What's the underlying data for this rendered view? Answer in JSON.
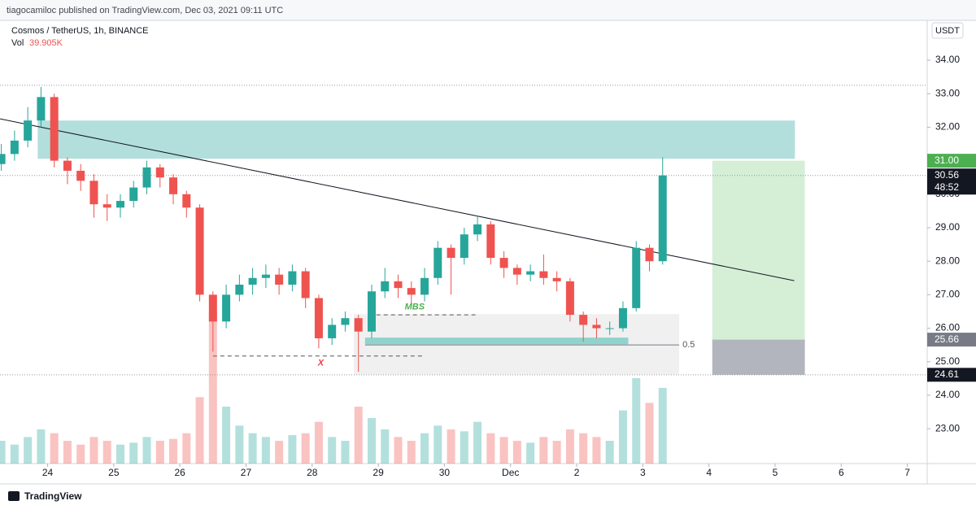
{
  "header": {
    "text": "tiagocamiloc published on TradingView.com, Dec 03, 2021 09:11 UTC"
  },
  "footer": {
    "text": "TradingView"
  },
  "chart_data": {
    "type": "candlestick",
    "title": "Cosmos / TetherUS, 1h, BINANCE",
    "currency": "USDT",
    "volume_name": "Vol",
    "volume_value_label": "39.905K",
    "up_color": "#26a69a",
    "down_color": "#ef5350",
    "x": [
      -0.7,
      -0.5,
      -0.3,
      -0.1,
      0.1,
      0.3,
      0.5,
      0.7,
      0.9,
      1.1,
      1.3,
      1.5,
      1.7,
      1.9,
      2.1,
      2.3,
      2.5,
      2.7,
      2.9,
      3.1,
      3.3,
      3.5,
      3.7,
      3.9,
      4.1,
      4.3,
      4.5,
      4.7,
      4.9,
      5.1,
      5.3,
      5.5,
      5.7,
      5.9,
      6.1,
      6.3,
      6.5,
      6.7,
      6.9,
      7.1,
      7.3,
      7.5,
      7.7,
      7.9,
      8.1,
      8.3,
      8.5,
      8.7,
      8.9,
      9.1,
      9.3
    ],
    "open": [
      30.9,
      31.2,
      31.6,
      32.2,
      32.9,
      31.0,
      30.7,
      30.4,
      29.7,
      29.6,
      29.8,
      30.2,
      30.8,
      30.5,
      30.0,
      29.6,
      27.0,
      26.2,
      27.0,
      27.3,
      27.5,
      27.6,
      27.3,
      27.7,
      26.9,
      25.7,
      26.1,
      26.3,
      25.9,
      27.1,
      27.4,
      27.2,
      27.0,
      27.5,
      28.4,
      28.1,
      28.8,
      29.1,
      28.1,
      27.8,
      27.6,
      27.7,
      27.5,
      27.4,
      26.4,
      26.1,
      26.0,
      26.0,
      26.6,
      28.4,
      28.0
    ],
    "high": [
      31.5,
      31.9,
      32.6,
      33.2,
      33.0,
      31.1,
      30.9,
      30.6,
      30.0,
      30.0,
      30.4,
      31.0,
      30.9,
      30.6,
      30.1,
      29.7,
      27.1,
      27.3,
      27.6,
      27.8,
      27.9,
      27.8,
      27.9,
      27.8,
      27.0,
      26.3,
      26.5,
      26.4,
      27.3,
      27.8,
      27.6,
      27.4,
      27.8,
      28.6,
      28.5,
      29.0,
      29.35,
      29.2,
      28.3,
      27.9,
      27.9,
      28.2,
      27.7,
      27.5,
      26.5,
      26.3,
      26.2,
      26.8,
      28.6,
      28.5,
      31.1
    ],
    "low": [
      30.7,
      31.0,
      31.4,
      32.0,
      30.8,
      30.3,
      30.1,
      29.3,
      29.2,
      29.3,
      29.6,
      30.0,
      30.2,
      29.7,
      29.3,
      26.8,
      25.3,
      26.0,
      26.8,
      27.0,
      27.2,
      27.0,
      27.1,
      26.6,
      25.4,
      25.5,
      25.9,
      24.7,
      25.7,
      26.9,
      26.9,
      26.7,
      26.8,
      27.3,
      27.0,
      27.9,
      28.6,
      27.9,
      27.5,
      27.3,
      27.4,
      27.3,
      27.1,
      26.2,
      25.6,
      25.7,
      25.8,
      25.9,
      26.5,
      27.7,
      27.9
    ],
    "close": [
      31.2,
      31.6,
      32.2,
      32.9,
      31.0,
      30.7,
      30.4,
      29.7,
      29.6,
      29.8,
      30.2,
      30.8,
      30.5,
      30.0,
      29.6,
      27.0,
      26.2,
      27.0,
      27.3,
      27.5,
      27.6,
      27.3,
      27.7,
      26.9,
      25.7,
      26.1,
      26.3,
      25.9,
      27.1,
      27.4,
      27.2,
      27.0,
      27.5,
      28.4,
      28.1,
      28.8,
      29.1,
      28.1,
      27.8,
      27.6,
      27.7,
      27.5,
      27.4,
      26.4,
      26.1,
      26.0,
      26.0,
      26.6,
      28.4,
      28.0,
      30.56
    ],
    "volume": [
      12,
      10,
      14,
      18,
      16,
      12,
      10,
      14,
      12,
      10,
      11,
      14,
      12,
      13,
      16,
      35,
      80,
      30,
      20,
      16,
      14,
      12,
      15,
      16,
      22,
      14,
      12,
      30,
      24,
      18,
      14,
      12,
      16,
      20,
      18,
      17,
      22,
      16,
      14,
      12,
      11,
      14,
      12,
      18,
      16,
      14,
      12,
      28,
      45,
      32,
      39.905
    ],
    "volume_ylim": [
      0,
      120
    ],
    "xlim": [
      -0.72,
      13.3
    ],
    "xticks": [
      {
        "value": 0,
        "label": "24"
      },
      {
        "value": 1,
        "label": "25"
      },
      {
        "value": 2,
        "label": "26"
      },
      {
        "value": 3,
        "label": "27"
      },
      {
        "value": 4,
        "label": "28"
      },
      {
        "value": 5,
        "label": "29"
      },
      {
        "value": 6,
        "label": "30"
      },
      {
        "value": 7,
        "label": "Dec"
      },
      {
        "value": 8,
        "label": "2"
      },
      {
        "value": 9,
        "label": "3"
      },
      {
        "value": 10,
        "label": "4"
      },
      {
        "value": 11,
        "label": "5"
      },
      {
        "value": 12,
        "label": "6"
      },
      {
        "value": 13,
        "label": "7"
      }
    ],
    "ylim": [
      21.96,
      35.19
    ],
    "yticks": [
      {
        "value": 23,
        "label": "23.00"
      },
      {
        "value": 24,
        "label": "24.00"
      },
      {
        "value": 25,
        "label": "25.00"
      },
      {
        "value": 26,
        "label": "26.00"
      },
      {
        "value": 27,
        "label": "27.00"
      },
      {
        "value": 28,
        "label": "28.00"
      },
      {
        "value": 29,
        "label": "29.00"
      },
      {
        "value": 30,
        "label": "30.00"
      },
      {
        "value": 31,
        "label": "31.00"
      },
      {
        "value": 32,
        "label": "32.00"
      },
      {
        "value": 33,
        "label": "33.00"
      },
      {
        "value": 34,
        "label": "34.00"
      }
    ],
    "hlines": [
      33.25,
      30.56,
      24.61
    ],
    "zones": [
      {
        "x": [
          -0.15,
          11.3
        ],
        "y": [
          31.06,
          32.2
        ],
        "color": "#b2dfdb"
      },
      {
        "x": [
          4.63,
          9.55
        ],
        "y": [
          24.62,
          26.42
        ],
        "color": "#f0f0f0"
      },
      {
        "x": [
          4.8,
          8.78
        ],
        "y": [
          25.52,
          25.72
        ],
        "color": "#8fd3cc"
      }
    ],
    "long_position": {
      "x": [
        10.05,
        11.45
      ],
      "target": 31.0,
      "entry": 25.66,
      "stop": 24.61,
      "target_color": "#d4efd6",
      "stop_color": "#b2b5be"
    },
    "trendline": {
      "x": [
        -0.72,
        11.29
      ],
      "y": [
        32.25,
        27.42
      ]
    },
    "dashed_lines": [
      {
        "x": [
          2.5,
          5.7
        ],
        "y": 25.17
      },
      {
        "x": [
          4.86,
          6.47
        ],
        "y": 26.4
      }
    ],
    "fib_line": {
      "x": [
        4.8,
        9.55
      ],
      "y": 25.5,
      "label": "0.5"
    },
    "texts": [
      {
        "text": "X",
        "x": 4.13,
        "y": 24.95,
        "color": "#f23645"
      },
      {
        "text": "MBS",
        "x": 5.55,
        "y": 26.63,
        "color": "#4caf50"
      }
    ],
    "price_tags": [
      {
        "value": 31.0,
        "label": "31.00",
        "color": "#4caf50"
      },
      {
        "value": 30.56,
        "label": "30.56",
        "color": "#131722",
        "sub": "48:52"
      },
      {
        "value": 25.66,
        "label": "25.66",
        "color": "#787b86"
      },
      {
        "value": 24.61,
        "label": "24.61",
        "color": "#131722"
      }
    ]
  }
}
